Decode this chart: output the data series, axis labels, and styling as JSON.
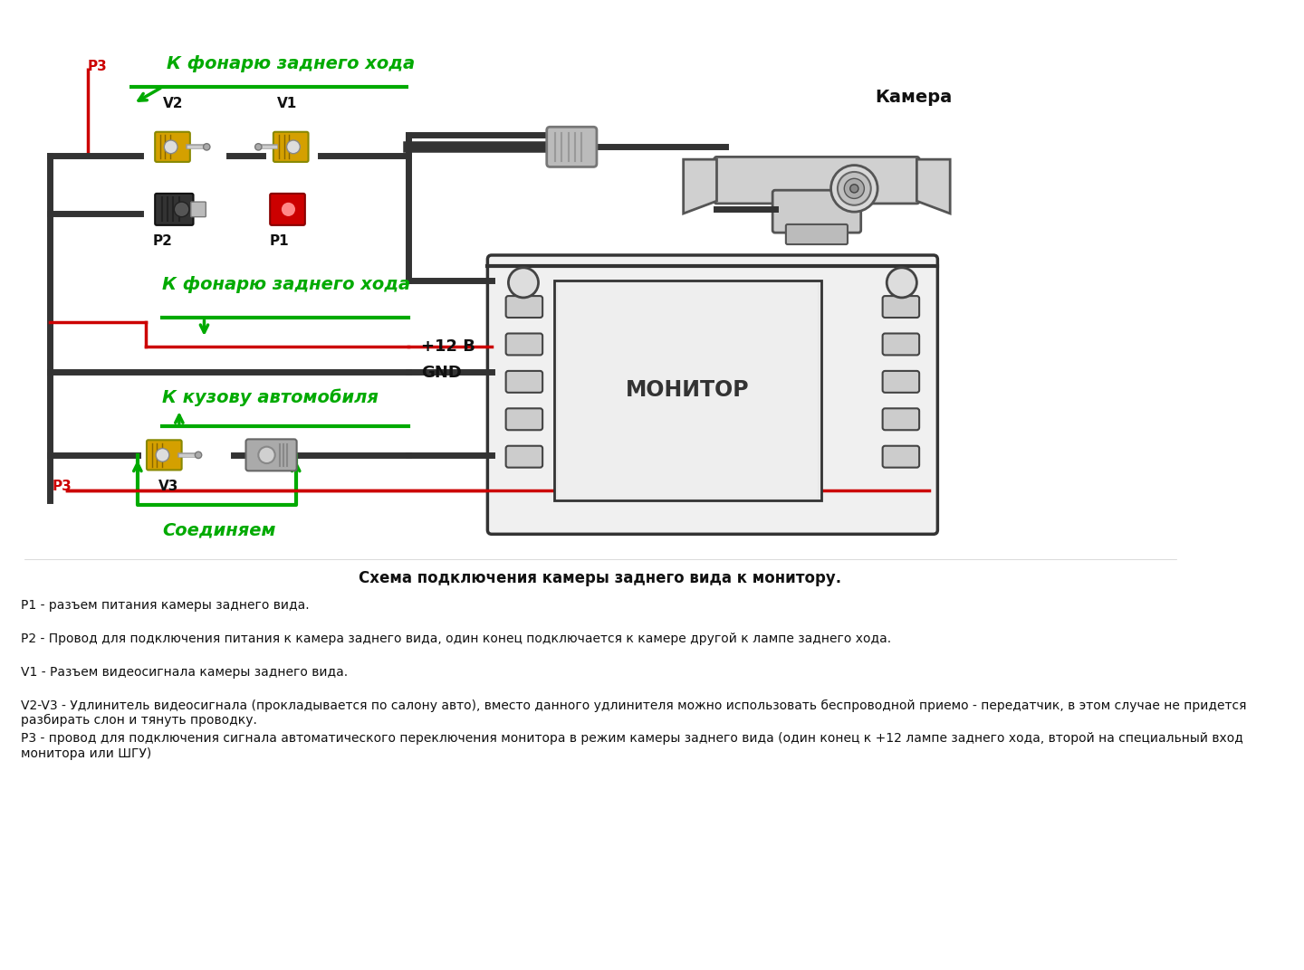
{
  "bg_color": "#ffffff",
  "title_diagram": "Схема подключения камеры заднего вида к монитору.",
  "label_camera": "Камера",
  "label_monitor": "МОНИТОР",
  "label_fonary_top": "К фонарю заднего хода",
  "label_fonary_mid": "К фонарю заднего хода",
  "label_kuzov": "К кузову автомобиля",
  "label_soed": "Соединяем",
  "label_12v": "+12 В",
  "label_gnd": "GND",
  "label_p1": "P1",
  "label_p2": "P2",
  "label_p3_top": "P3",
  "label_p3_bot": "P3",
  "label_v1": "V1",
  "label_v2": "V2",
  "label_v3": "V3",
  "color_green": "#00aa00",
  "color_red": "#cc0000",
  "color_black": "#111111",
  "color_yellow": "#d4a000",
  "color_gray_conn": "#aaaaaa",
  "color_wire_black": "#333333",
  "desc_lines": [
    "Р1 - разъем питания камеры заднего вида.",
    "Р2 - Провод для подключения питания к камера заднего вида, один конец подключается к камере другой к лампе заднего хода.",
    "V1 - Разъем видеосигнала камеры заднего вида.",
    "V2-V3 - Удлинитель видеосигнала (прокладывается по салону авто), вместо данного удлинителя можно использовать беспроводной приемо - передатчик, в этом случае не придется разбирать слон и тянуть проводку.",
    "Р3 - провод для подключения сигнала автоматического переключения монитора в режим камеры заднего вида (один конец к +12 лампе заднего хода, второй на специальный вход монитора или ШГУ)"
  ]
}
